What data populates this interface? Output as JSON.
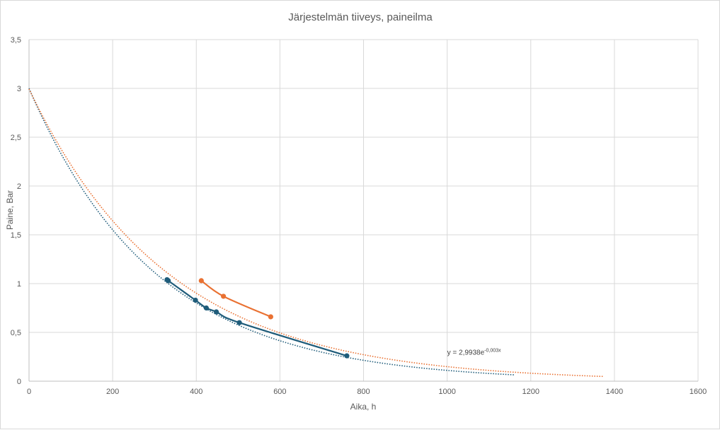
{
  "chart_data": {
    "type": "scatter",
    "title": "Järjestelmän tiiveys, paineilma",
    "xlabel": "Aika, h",
    "ylabel": "Paine, Bar",
    "xlim": [
      0,
      1600
    ],
    "ylim": [
      0,
      3.5
    ],
    "xticks": [
      0,
      200,
      400,
      600,
      800,
      1000,
      1200,
      1400,
      1600
    ],
    "xtick_labels": [
      "0",
      "200",
      "400",
      "600",
      "800",
      "1000",
      "1200",
      "1400",
      "1600"
    ],
    "yticks": [
      0,
      0.5,
      1,
      1.5,
      2,
      2.5,
      3,
      3.5
    ],
    "ytick_labels": [
      "0",
      "0,5",
      "1",
      "1,5",
      "2",
      "2,5",
      "3",
      "3,5"
    ],
    "grid": true,
    "legend": "none",
    "series": [
      {
        "color": "#1f5c7a",
        "marker": "circle",
        "line": "smooth",
        "x": [
          330,
          333,
          398,
          424,
          448,
          503,
          760
        ],
        "y": [
          1.04,
          1.03,
          0.83,
          0.75,
          0.71,
          0.6,
          0.26
        ],
        "trendline": {
          "type": "exponential",
          "a": 3.0,
          "b": -0.0033,
          "x_range": [
            0,
            1160
          ]
        }
      },
      {
        "color": "#e97132",
        "marker": "circle",
        "line": "smooth",
        "x": [
          412,
          465,
          578
        ],
        "y": [
          1.03,
          0.87,
          0.66
        ],
        "trendline": {
          "type": "exponential",
          "a": 2.9938,
          "b": -0.003,
          "x_range": [
            0,
            1375
          ]
        }
      }
    ],
    "annotations": [
      {
        "text": "y = 2,9938e",
        "superscript": "-0,003x",
        "x": 1000,
        "y": 0.27
      }
    ]
  }
}
